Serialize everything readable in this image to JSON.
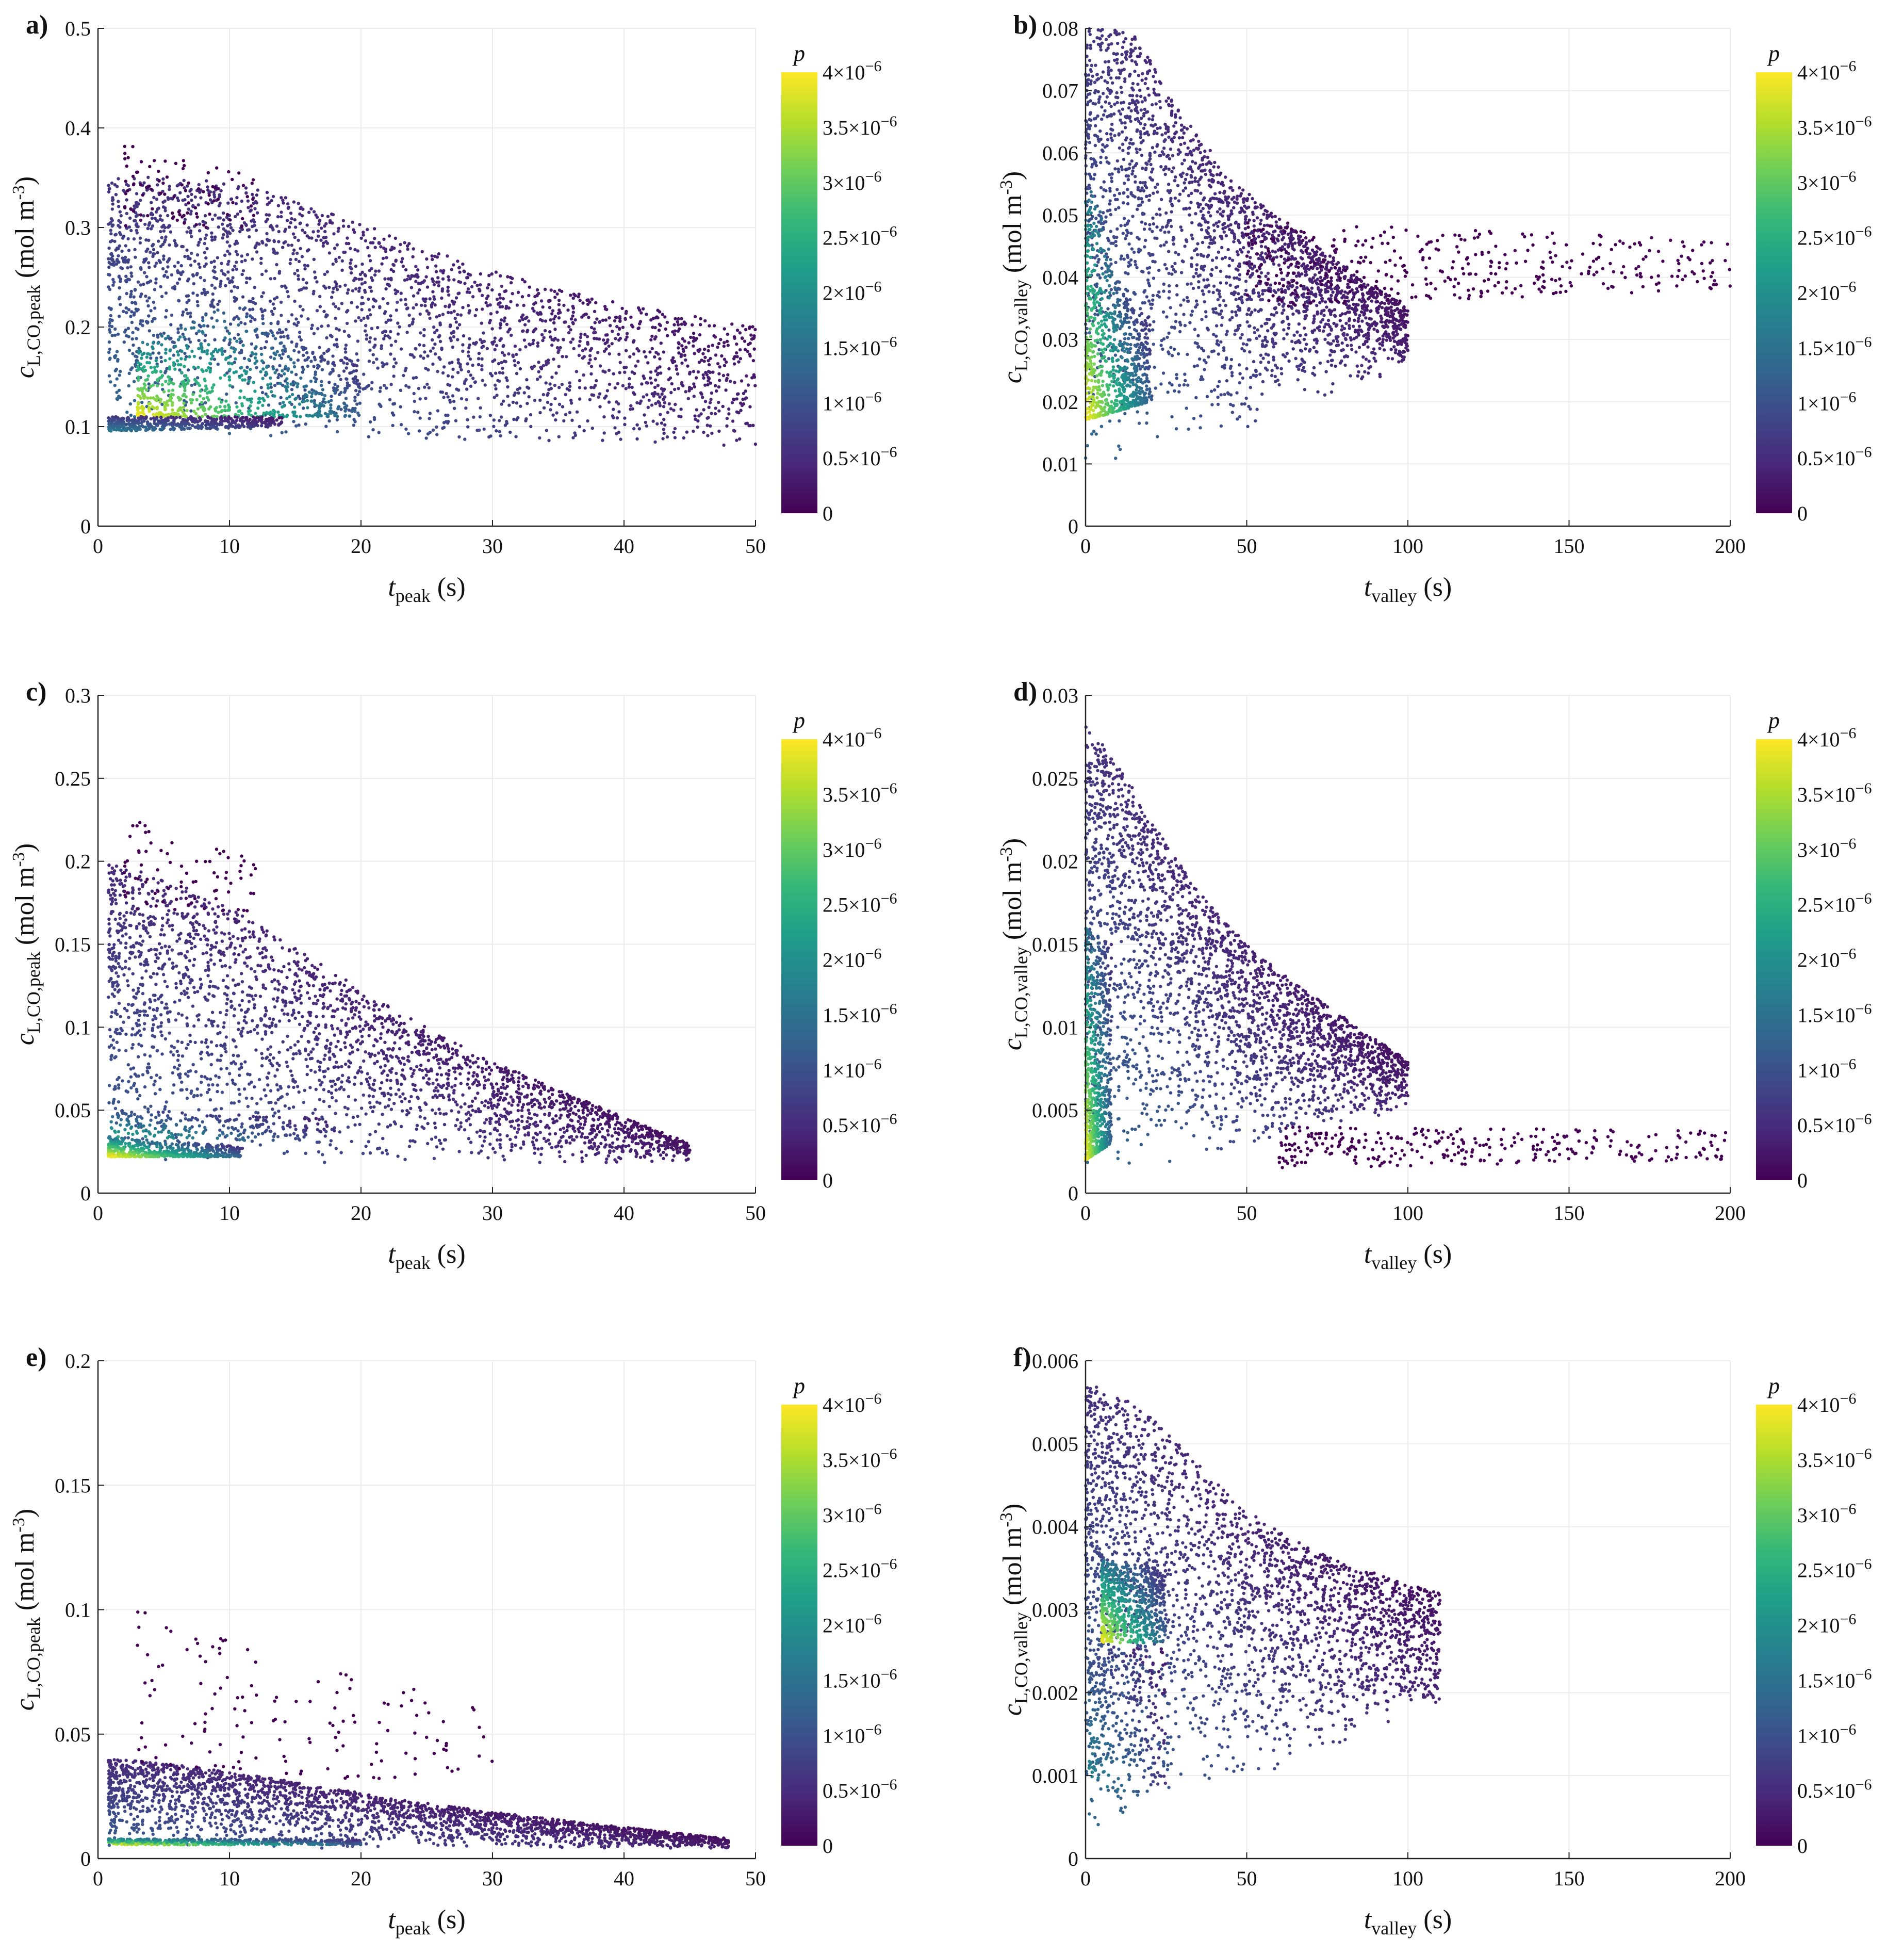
{
  "colors": {
    "viridis": [
      "#440154",
      "#482878",
      "#3e4989",
      "#31688e",
      "#26828e",
      "#1f9e89",
      "#35b779",
      "#6ece58",
      "#b5de2b",
      "#fde725"
    ],
    "grid": "#ececec",
    "axis": "#222222"
  },
  "chart_data": [
    {
      "id": "a",
      "panel_label": "a)",
      "type": "scatter",
      "xlabel": {
        "main": "t",
        "sub": "peak",
        "unit": " (s)"
      },
      "ylabel": {
        "main": "c",
        "sub": "L,CO,peak",
        "unit": " (mol m",
        "exp": "-3",
        "close": ")"
      },
      "xlim": [
        0,
        50
      ],
      "ylim": [
        0,
        0.5
      ],
      "xticks": [
        0,
        10,
        20,
        30,
        40,
        50
      ],
      "xtick_labels": [
        "0",
        "10",
        "20",
        "30",
        "40",
        "50"
      ],
      "yticks": [
        0,
        0.1,
        0.2,
        0.3,
        0.4,
        0.5
      ],
      "ytick_labels": [
        "0",
        "0.1",
        "0.2",
        "0.3",
        "0.4",
        "0.5"
      ],
      "density_range": [
        0,
        4e-06
      ],
      "clusters": [
        {
          "n": 2600,
          "x": [
            0.8,
            50
          ],
          "ymin": [
            0.093,
            0.08
          ],
          "ymax": [
            0.305,
            0.2
          ],
          "xpeak": 11,
          "hmul": 0.3,
          "dens": 0.35,
          "skew": 0.7
        },
        {
          "n": 700,
          "x": [
            3,
            20
          ],
          "ymin": [
            0.11,
            0.11
          ],
          "ymax": [
            0.175,
            0.16
          ],
          "xpeak": 11,
          "hmul": 0.9,
          "dens": 1.0,
          "skew": 1.6
        },
        {
          "n": 450,
          "x": [
            0.8,
            14
          ],
          "ymin": [
            0.095,
            0.1
          ],
          "ymax": [
            0.11,
            0.11
          ],
          "xpeak": 5,
          "hmul": 0.0,
          "dens": 0.42,
          "skew": 1.0
        },
        {
          "n": 90,
          "x": [
            2,
            12
          ],
          "ymin": [
            0.3,
            0.3
          ],
          "ymax": [
            0.39,
            0.35
          ],
          "xpeak": 5,
          "hmul": 0.0,
          "dens": 0.0,
          "skew": 1.0
        }
      ],
      "colorbar": {
        "title": "p",
        "ticks": [
          0,
          5e-07,
          1e-06,
          1.5e-06,
          2e-06,
          2.5e-06,
          3e-06,
          3.5e-06,
          4e-06
        ],
        "labels": [
          {
            "m": "0",
            "e": ""
          },
          {
            "m": "0.5×10",
            "e": "−6"
          },
          {
            "m": "1×10",
            "e": "−6"
          },
          {
            "m": "1.5×10",
            "e": "−6"
          },
          {
            "m": "2×10",
            "e": "−6"
          },
          {
            "m": "2.5×10",
            "e": "−6"
          },
          {
            "m": "3×10",
            "e": "−6"
          },
          {
            "m": "3.5×10",
            "e": "−6"
          },
          {
            "m": "4×10",
            "e": "−6"
          }
        ]
      }
    },
    {
      "id": "b",
      "panel_label": "b)",
      "type": "scatter",
      "xlabel": {
        "main": "t",
        "sub": "valley",
        "unit": " (s)"
      },
      "ylabel": {
        "main": "c",
        "sub": "L,CO,valley",
        "unit": " (mol m",
        "exp": "-3",
        "close": ")"
      },
      "xlim": [
        0,
        200
      ],
      "ylim": [
        0,
        0.08
      ],
      "xticks": [
        0,
        50,
        100,
        150,
        200
      ],
      "xtick_labels": [
        "0",
        "50",
        "100",
        "150",
        "200"
      ],
      "yticks": [
        0,
        0.01,
        0.02,
        0.03,
        0.04,
        0.05,
        0.06,
        0.07,
        0.08
      ],
      "ytick_labels": [
        "0",
        "0.01",
        "0.02",
        "0.03",
        "0.04",
        "0.05",
        "0.06",
        "0.07",
        "0.08"
      ],
      "density_range": [
        0,
        4e-06
      ],
      "clusters": [
        {
          "n": 2600,
          "x": [
            0,
            100
          ],
          "ymin": [
            0.004,
            0.025
          ],
          "ymax": [
            0.07,
            0.035
          ],
          "xpeak": 0,
          "hmul": 0.3,
          "dens": 0.35,
          "skew": 0.5
        },
        {
          "n": 800,
          "x": [
            0,
            20
          ],
          "ymin": [
            0.017,
            0.02
          ],
          "ymax": [
            0.037,
            0.034
          ],
          "xpeak": 2,
          "hmul": 0.9,
          "dens": 1.0,
          "skew": 1.8
        },
        {
          "n": 400,
          "x": [
            50,
            200
          ],
          "ymin": [
            0.035,
            0.038
          ],
          "ymax": [
            0.049,
            0.046
          ],
          "xpeak": 100,
          "hmul": 0.0,
          "dens": 0.0,
          "skew": 1.0
        }
      ],
      "colorbar": {
        "title": "p",
        "ticks": [
          0,
          5e-07,
          1e-06,
          1.5e-06,
          2e-06,
          2.5e-06,
          3e-06,
          3.5e-06,
          4e-06
        ],
        "labels": [
          {
            "m": "0",
            "e": ""
          },
          {
            "m": "0.5×10",
            "e": "−6"
          },
          {
            "m": "1×10",
            "e": "−6"
          },
          {
            "m": "1.5×10",
            "e": "−6"
          },
          {
            "m": "2×10",
            "e": "−6"
          },
          {
            "m": "2.5×10",
            "e": "−6"
          },
          {
            "m": "3×10",
            "e": "−6"
          },
          {
            "m": "3.5×10",
            "e": "−6"
          },
          {
            "m": "4×10",
            "e": "−6"
          }
        ]
      }
    },
    {
      "id": "c",
      "panel_label": "c)",
      "type": "scatter",
      "xlabel": {
        "main": "t",
        "sub": "peak",
        "unit": " (s)"
      },
      "ylabel": {
        "main": "c",
        "sub": "L,CO,peak",
        "unit": " (mol m",
        "exp": "-3",
        "close": ")"
      },
      "xlim": [
        0,
        50
      ],
      "ylim": [
        0,
        0.3
      ],
      "xticks": [
        0,
        10,
        20,
        30,
        40,
        50
      ],
      "xtick_labels": [
        "0",
        "10",
        "20",
        "30",
        "40",
        "50"
      ],
      "yticks": [
        0,
        0.05,
        0.1,
        0.15,
        0.2,
        0.25,
        0.3
      ],
      "ytick_labels": [
        "0",
        "0.05",
        "0.1",
        "0.15",
        "0.2",
        "0.25",
        "0.3"
      ],
      "density_range": [
        0,
        4e-06
      ],
      "clusters": [
        {
          "n": 2600,
          "x": [
            0.8,
            45
          ],
          "ymin": [
            0.018,
            0.018
          ],
          "ymax": [
            0.17,
            0.03
          ],
          "xpeak": 9,
          "hmul": 0.25,
          "dens": 0.3,
          "skew": 0.6
        },
        {
          "n": 550,
          "x": [
            0.8,
            11
          ],
          "ymin": [
            0.022,
            0.022
          ],
          "ymax": [
            0.034,
            0.028
          ],
          "xpeak": 3,
          "hmul": 0.0,
          "dens": 1.0,
          "skew": 2.0
        },
        {
          "n": 200,
          "x": [
            1,
            18
          ],
          "ymin": [
            0.034,
            0.03
          ],
          "ymax": [
            0.05,
            0.045
          ],
          "xpeak": 3,
          "hmul": 0.0,
          "dens": 0.6,
          "skew": 1.0
        },
        {
          "n": 80,
          "x": [
            2,
            12
          ],
          "ymin": [
            0.17,
            0.17
          ],
          "ymax": [
            0.23,
            0.2
          ],
          "xpeak": 5,
          "hmul": 0.0,
          "dens": 0.0,
          "skew": 1.0
        }
      ],
      "colorbar": {
        "title": "p",
        "ticks": [
          0,
          5e-07,
          1e-06,
          1.5e-06,
          2e-06,
          2.5e-06,
          3e-06,
          3.5e-06,
          4e-06
        ],
        "labels": [
          {
            "m": "0",
            "e": ""
          },
          {
            "m": "0.5×10",
            "e": "−6"
          },
          {
            "m": "1×10",
            "e": "−6"
          },
          {
            "m": "1.5×10",
            "e": "−6"
          },
          {
            "m": "2×10",
            "e": "−6"
          },
          {
            "m": "2.5×10",
            "e": "−6"
          },
          {
            "m": "3×10",
            "e": "−6"
          },
          {
            "m": "3.5×10",
            "e": "−6"
          },
          {
            "m": "4×10",
            "e": "−6"
          }
        ]
      }
    },
    {
      "id": "d",
      "panel_label": "d)",
      "type": "scatter",
      "xlabel": {
        "main": "t",
        "sub": "valley",
        "unit": " (s)"
      },
      "ylabel": {
        "main": "c",
        "sub": "L,CO,valley",
        "unit": " (mol m",
        "exp": "-3",
        "close": ")"
      },
      "xlim": [
        0,
        200
      ],
      "ylim": [
        0,
        0.03
      ],
      "xticks": [
        0,
        50,
        100,
        150,
        200
      ],
      "xtick_labels": [
        "0",
        "50",
        "100",
        "150",
        "200"
      ],
      "yticks": [
        0,
        0.005,
        0.01,
        0.015,
        0.02,
        0.025,
        0.03
      ],
      "ytick_labels": [
        "0",
        "0.005",
        "0.01",
        "0.015",
        "0.02",
        "0.025",
        "0.03"
      ],
      "density_range": [
        0,
        4e-06
      ],
      "clusters": [
        {
          "n": 2600,
          "x": [
            0,
            100
          ],
          "ymin": [
            0.0004,
            0.005
          ],
          "ymax": [
            0.021,
            0.008
          ],
          "xpeak": 0,
          "hmul": 0.35,
          "dens": 0.35,
          "skew": 0.55
        },
        {
          "n": 700,
          "x": [
            0,
            8
          ],
          "ymin": [
            0.002,
            0.003
          ],
          "ymax": [
            0.016,
            0.015
          ],
          "xpeak": 1,
          "hmul": 0.0,
          "dens": 1.0,
          "skew": 2.0
        },
        {
          "n": 300,
          "x": [
            60,
            200
          ],
          "ymin": [
            0.0015,
            0.002
          ],
          "ymax": [
            0.004,
            0.0038
          ],
          "xpeak": 100,
          "hmul": 0.0,
          "dens": 0.0,
          "skew": 1.0
        }
      ],
      "colorbar": {
        "title": "p",
        "ticks": [
          0,
          5e-07,
          1e-06,
          1.5e-06,
          2e-06,
          2.5e-06,
          3e-06,
          3.5e-06,
          4e-06
        ],
        "labels": [
          {
            "m": "0",
            "e": ""
          },
          {
            "m": "0.5×10",
            "e": "−6"
          },
          {
            "m": "1×10",
            "e": "−6"
          },
          {
            "m": "1.5×10",
            "e": "−6"
          },
          {
            "m": "2×10",
            "e": "−6"
          },
          {
            "m": "2.5×10",
            "e": "−6"
          },
          {
            "m": "3×10",
            "e": "−6"
          },
          {
            "m": "3.5×10",
            "e": "−6"
          },
          {
            "m": "4×10",
            "e": "−6"
          }
        ]
      }
    },
    {
      "id": "e",
      "panel_label": "e)",
      "type": "scatter",
      "xlabel": {
        "main": "t",
        "sub": "peak",
        "unit": " (s)"
      },
      "ylabel": {
        "main": "c",
        "sub": "L,CO,peak",
        "unit": " (mol m",
        "exp": "-3",
        "close": ")"
      },
      "xlim": [
        0,
        50
      ],
      "ylim": [
        0,
        0.2
      ],
      "xticks": [
        0,
        10,
        20,
        30,
        40,
        50
      ],
      "xtick_labels": [
        "0",
        "10",
        "20",
        "30",
        "40",
        "50"
      ],
      "yticks": [
        0,
        0.05,
        0.1,
        0.15,
        0.2
      ],
      "ytick_labels": [
        "0",
        "0.05",
        "0.1",
        "0.15",
        "0.2"
      ],
      "density_range": [
        0,
        4e-06
      ],
      "clusters": [
        {
          "n": 2400,
          "x": [
            0.8,
            48
          ],
          "ymin": [
            0.004,
            0.004
          ],
          "ymax": [
            0.035,
            0.008
          ],
          "xpeak": 8,
          "hmul": 0.2,
          "dens": 0.3,
          "skew": 0.55
        },
        {
          "n": 500,
          "x": [
            0.8,
            20
          ],
          "ymin": [
            0.0055,
            0.0055
          ],
          "ymax": [
            0.008,
            0.0075
          ],
          "xpeak": 10,
          "hmul": 0.0,
          "dens": 1.0,
          "skew": 1.0
        },
        {
          "n": 140,
          "x": [
            3,
            30
          ],
          "ymin": [
            0.035,
            0.03
          ],
          "ymax": [
            0.1,
            0.06
          ],
          "xpeak": 8,
          "hmul": 0.0,
          "dens": 0.0,
          "skew": 1.0
        }
      ],
      "colorbar": {
        "title": "p",
        "ticks": [
          0,
          5e-07,
          1e-06,
          1.5e-06,
          2e-06,
          2.5e-06,
          3e-06,
          3.5e-06,
          4e-06
        ],
        "labels": [
          {
            "m": "0",
            "e": ""
          },
          {
            "m": "0.5×10",
            "e": "−6"
          },
          {
            "m": "1×10",
            "e": "−6"
          },
          {
            "m": "1.5×10",
            "e": "−6"
          },
          {
            "m": "2×10",
            "e": "−6"
          },
          {
            "m": "2.5×10",
            "e": "−6"
          },
          {
            "m": "3×10",
            "e": "−6"
          },
          {
            "m": "3.5×10",
            "e": "−6"
          },
          {
            "m": "4×10",
            "e": "−6"
          }
        ]
      }
    },
    {
      "id": "f",
      "panel_label": "f)",
      "type": "scatter",
      "xlabel": {
        "main": "t",
        "sub": "valley",
        "unit": " (s)"
      },
      "ylabel": {
        "main": "c",
        "sub": "L,CO,valley",
        "unit": " (mol m",
        "exp": "-3",
        "close": ")"
      },
      "xlim": [
        0,
        200
      ],
      "ylim": [
        0,
        0.006
      ],
      "xticks": [
        0,
        50,
        100,
        150,
        200
      ],
      "xtick_labels": [
        "0",
        "50",
        "100",
        "150",
        "200"
      ],
      "yticks": [
        0,
        0.001,
        0.002,
        0.003,
        0.004,
        0.005,
        0.006
      ],
      "ytick_labels": [
        "0",
        "0.001",
        "0.002",
        "0.003",
        "0.004",
        "0.005",
        "0.006"
      ],
      "density_range": [
        0,
        4e-06
      ],
      "clusters": [
        {
          "n": 2600,
          "x": [
            0,
            110
          ],
          "ymin": [
            0.0002,
            0.0018
          ],
          "ymax": [
            0.0045,
            0.0032
          ],
          "xpeak": 10,
          "hmul": 0.3,
          "dens": 0.35,
          "skew": 0.6
        },
        {
          "n": 650,
          "x": [
            5,
            25
          ],
          "ymin": [
            0.0026,
            0.0026
          ],
          "ymax": [
            0.0036,
            0.0035
          ],
          "xpeak": 12,
          "hmul": 0.0,
          "dens": 1.0,
          "skew": 1.0
        },
        {
          "n": 250,
          "x": [
            1,
            25
          ],
          "ymin": [
            0.0008,
            0.0008
          ],
          "ymax": [
            0.0026,
            0.0026
          ],
          "xpeak": 10,
          "hmul": 0.0,
          "dens": 0.5,
          "skew": 1.0
        }
      ],
      "colorbar": {
        "title": "p",
        "ticks": [
          0,
          5e-07,
          1e-06,
          1.5e-06,
          2e-06,
          2.5e-06,
          3e-06,
          3.5e-06,
          4e-06
        ],
        "labels": [
          {
            "m": "0",
            "e": ""
          },
          {
            "m": "0.5×10",
            "e": "−6"
          },
          {
            "m": "1×10",
            "e": "−6"
          },
          {
            "m": "1.5×10",
            "e": "−6"
          },
          {
            "m": "2×10",
            "e": "−6"
          },
          {
            "m": "2.5×10",
            "e": "−6"
          },
          {
            "m": "3×10",
            "e": "−6"
          },
          {
            "m": "3.5×10",
            "e": "−6"
          },
          {
            "m": "4×10",
            "e": "−6"
          }
        ]
      }
    }
  ]
}
